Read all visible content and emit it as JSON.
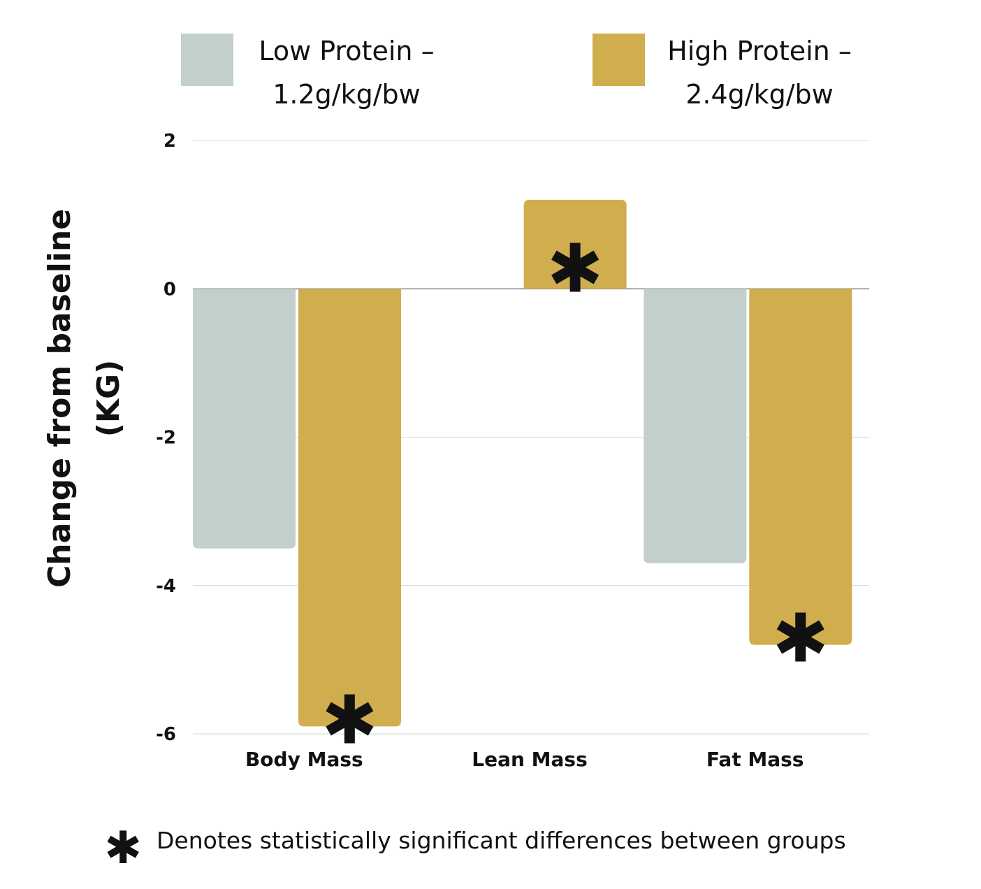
{
  "chart_data": {
    "type": "bar",
    "title": "",
    "xlabel": "",
    "ylabel_lines": [
      "Change from baseline",
      "(KG)"
    ],
    "categories": [
      "Body Mass",
      "Lean Mass",
      "Fat Mass"
    ],
    "series": [
      {
        "name_lines": [
          "Low Protein –",
          "1.2g/kg/bw"
        ],
        "color": "#c2cfcc",
        "values": [
          -3.5,
          0,
          -3.7
        ],
        "significant": [
          false,
          false,
          false
        ]
      },
      {
        "name_lines": [
          "High Protein –",
          "2.4g/kg/bw"
        ],
        "color": "#d0ae4e",
        "values": [
          -5.9,
          1.2,
          -4.8
        ],
        "significant": [
          true,
          true,
          true
        ]
      }
    ],
    "ylim": [
      -6,
      2
    ],
    "yticks": [
      2,
      0,
      -2,
      -4,
      -6
    ],
    "ytick_labels": [
      "2",
      "0",
      "-2",
      "-4",
      "-6"
    ],
    "grid": true,
    "legend_position": "top",
    "significance_marker": "✱"
  },
  "footnote": {
    "marker": "✱",
    "text": "Denotes statistically significant differences between groups"
  }
}
